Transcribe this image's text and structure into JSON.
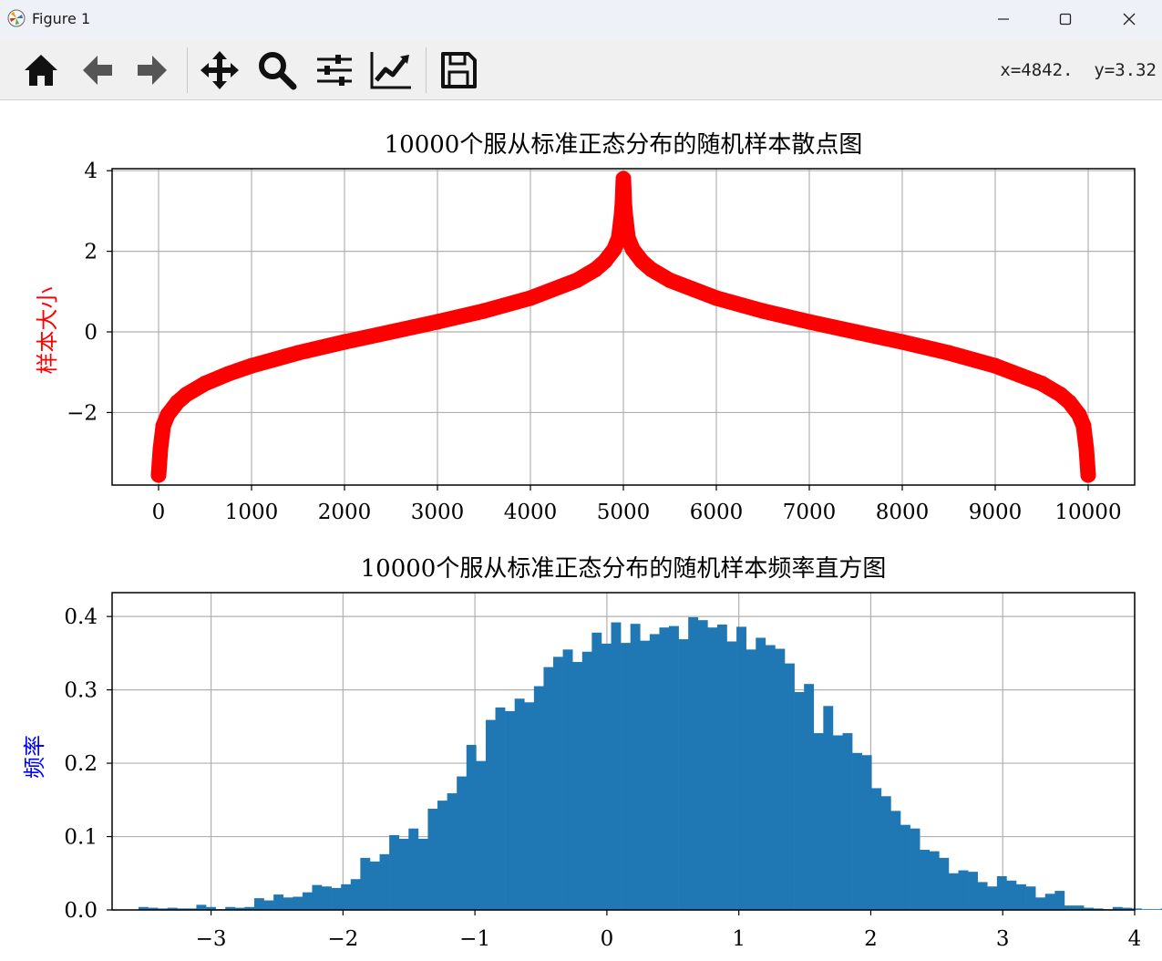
{
  "window": {
    "title": "Figure 1",
    "controls": {
      "minimize": "minimize",
      "maximize": "maximize",
      "close": "close"
    }
  },
  "toolbar": {
    "buttons": [
      "home-icon",
      "back-icon",
      "forward-icon",
      "pan-icon",
      "zoom-icon",
      "configure-subplots-icon",
      "edit-axis-icon",
      "save-icon"
    ],
    "coords": "x=4842.  y=3.32"
  },
  "colors": {
    "scatter": "#ff0000",
    "hist": "#1f77b4",
    "ylabel_top": "#ff0000",
    "ylabel_bottom": "#0000ff",
    "grid": "#b0b0b0"
  },
  "chart_data": [
    {
      "type": "scatter",
      "title": "10000个服从标准正态分布的随机样本散点图",
      "xlabel": "",
      "ylabel": "样本大小",
      "xlim": [
        -500,
        10500
      ],
      "ylim": [
        -3.8,
        4.05
      ],
      "xticks": [
        0,
        1000,
        2000,
        3000,
        4000,
        5000,
        6000,
        7000,
        8000,
        9000,
        10000
      ],
      "yticks": [
        -2,
        0,
        2,
        4
      ],
      "ytick_labels": [
        "−2",
        "0",
        "2",
        "4"
      ],
      "grid": true,
      "description_series": "samples sorted ascending for indices 0–4999 and descending for 5000–9999 (quantile curve of N(0,1))",
      "x": [
        0,
        20,
        50,
        100,
        200,
        300,
        500,
        750,
        1000,
        1500,
        2000,
        2500,
        3000,
        3500,
        4000,
        4500,
        4700,
        4800,
        4900,
        4950,
        4980,
        4990,
        5000,
        5010,
        5020,
        5050,
        5100,
        5200,
        5300,
        5500,
        6000,
        6500,
        7000,
        7500,
        8000,
        8500,
        9000,
        9500,
        9700,
        9800,
        9900,
        9950,
        9980,
        10000
      ],
      "y": [
        -3.55,
        -2.9,
        -2.33,
        -2.05,
        -1.75,
        -1.55,
        -1.28,
        -1.04,
        -0.84,
        -0.52,
        -0.25,
        0.0,
        0.25,
        0.52,
        0.84,
        1.28,
        1.55,
        1.75,
        2.05,
        2.33,
        2.9,
        3.2,
        3.8,
        3.2,
        2.9,
        2.33,
        2.05,
        1.75,
        1.55,
        1.28,
        0.84,
        0.52,
        0.25,
        0.0,
        -0.25,
        -0.52,
        -0.84,
        -1.28,
        -1.55,
        -1.75,
        -2.05,
        -2.33,
        -2.9,
        -3.55
      ]
    },
    {
      "type": "bar",
      "title": "10000个服从标准正态分布的随机样本频率直方图",
      "xlabel": "",
      "ylabel": "频率",
      "xlim": [
        -3.75,
        4.0
      ],
      "ylim": [
        0,
        0.4
      ],
      "xticks": [
        -3,
        -2,
        -1,
        0,
        1,
        2,
        3,
        4
      ],
      "xtick_labels": [
        "−3",
        "−2",
        "−1",
        "0",
        "1",
        "2",
        "3",
        "4"
      ],
      "yticks": [
        0.0,
        0.1,
        0.2,
        0.3,
        0.4
      ],
      "ytick_labels": [
        "0.0",
        "0.1",
        "0.2",
        "0.3",
        "0.4"
      ],
      "grid": true,
      "bin_start": -3.55,
      "bin_width": 0.0731,
      "values": [
        0.004,
        0.003,
        0.002,
        0.003,
        0.002,
        0.002,
        0.007,
        0.004,
        0.001,
        0.004,
        0.003,
        0.004,
        0.016,
        0.013,
        0.021,
        0.017,
        0.018,
        0.024,
        0.034,
        0.032,
        0.03,
        0.035,
        0.042,
        0.071,
        0.066,
        0.076,
        0.102,
        0.097,
        0.111,
        0.097,
        0.138,
        0.149,
        0.159,
        0.182,
        0.225,
        0.203,
        0.259,
        0.276,
        0.271,
        0.288,
        0.283,
        0.305,
        0.331,
        0.345,
        0.355,
        0.338,
        0.352,
        0.378,
        0.363,
        0.392,
        0.364,
        0.39,
        0.367,
        0.376,
        0.385,
        0.387,
        0.369,
        0.399,
        0.395,
        0.385,
        0.389,
        0.366,
        0.386,
        0.355,
        0.371,
        0.361,
        0.356,
        0.336,
        0.297,
        0.308,
        0.241,
        0.278,
        0.238,
        0.241,
        0.214,
        0.211,
        0.166,
        0.155,
        0.135,
        0.116,
        0.111,
        0.082,
        0.08,
        0.071,
        0.05,
        0.054,
        0.052,
        0.038,
        0.032,
        0.046,
        0.04,
        0.035,
        0.032,
        0.017,
        0.022,
        0.026,
        0.006,
        0.006,
        0.003,
        0.002,
        0.001,
        0.004,
        0.003,
        0.002,
        0.001,
        0.001,
        0.002,
        0.001,
        0.002
      ]
    }
  ]
}
